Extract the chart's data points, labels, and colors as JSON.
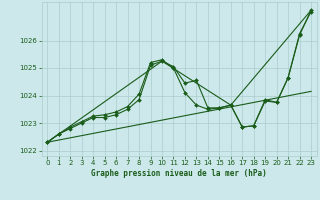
{
  "background_color": "#cce8ea",
  "grid_color": "#aacccc",
  "line_color": "#1a5c1a",
  "marker_color": "#1a5c1a",
  "xlabel": "Graphe pression niveau de la mer (hPa)",
  "ylim": [
    1021.8,
    1027.4
  ],
  "xlim": [
    -0.5,
    23.5
  ],
  "yticks": [
    1022,
    1023,
    1024,
    1025,
    1026
  ],
  "xticks": [
    0,
    1,
    2,
    3,
    4,
    5,
    6,
    7,
    8,
    9,
    10,
    11,
    12,
    13,
    14,
    15,
    16,
    17,
    18,
    19,
    20,
    21,
    22,
    23
  ],
  "series1_x": [
    0,
    1,
    2,
    3,
    4,
    5,
    6,
    7,
    8,
    9,
    10,
    11,
    12,
    13,
    14,
    15,
    16,
    17,
    18,
    19,
    20,
    21,
    22,
    23
  ],
  "series1_y": [
    1022.3,
    1022.6,
    1022.8,
    1023.0,
    1023.2,
    1023.2,
    1023.3,
    1023.5,
    1023.85,
    1025.1,
    1025.25,
    1025.05,
    1024.45,
    1024.55,
    1023.55,
    1023.55,
    1023.65,
    1022.85,
    1022.9,
    1023.8,
    1023.75,
    1024.65,
    1026.2,
    1027.1
  ],
  "series2_x": [
    0,
    1,
    2,
    3,
    4,
    5,
    6,
    7,
    8,
    9,
    10,
    11,
    12,
    13,
    14,
    15,
    16,
    17,
    18,
    19,
    20,
    21,
    22,
    23
  ],
  "series2_y": [
    1022.3,
    1022.6,
    1022.85,
    1023.05,
    1023.25,
    1023.3,
    1023.4,
    1023.6,
    1024.05,
    1025.2,
    1025.3,
    1025.0,
    1024.1,
    1023.65,
    1023.5,
    1023.55,
    1023.65,
    1022.85,
    1022.9,
    1023.85,
    1023.75,
    1024.65,
    1026.25,
    1027.05
  ],
  "series3_x": [
    0,
    23
  ],
  "series3_y": [
    1022.3,
    1024.15
  ],
  "series4_x": [
    0,
    10,
    16,
    23
  ],
  "series4_y": [
    1022.3,
    1025.25,
    1023.65,
    1027.1
  ]
}
